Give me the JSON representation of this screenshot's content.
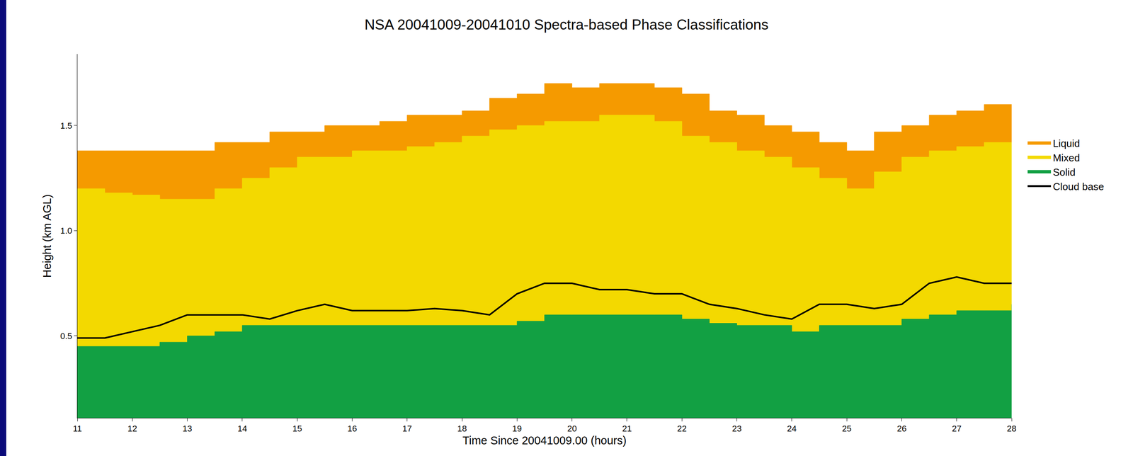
{
  "chart_data": {
    "type": "area",
    "title": "NSA 20041009-20041010 Spectra-based Phase Classifications",
    "x_label": "Time Since 20041009.00 (hours)",
    "y_label": "Height (km AGL)",
    "x": [
      11,
      11.5,
      12,
      12.5,
      13,
      13.5,
      14,
      14.5,
      15,
      15.5,
      16,
      16.5,
      17,
      17.5,
      18,
      18.5,
      19,
      19.5,
      20,
      20.5,
      21,
      21.5,
      22,
      22.5,
      23,
      23.5,
      24,
      24.5,
      25,
      25.5,
      26,
      26.5,
      27,
      27.5,
      28
    ],
    "series": [
      {
        "name": "Liquid",
        "color": "#f59a00",
        "values": [
          1.38,
          1.38,
          1.38,
          1.38,
          1.38,
          1.42,
          1.42,
          1.47,
          1.47,
          1.5,
          1.5,
          1.52,
          1.55,
          1.55,
          1.57,
          1.63,
          1.65,
          1.7,
          1.68,
          1.7,
          1.7,
          1.68,
          1.65,
          1.57,
          1.55,
          1.5,
          1.47,
          1.42,
          1.38,
          1.47,
          1.5,
          1.55,
          1.57,
          1.6,
          1.57
        ]
      },
      {
        "name": "Mixed",
        "color": "#f3d900",
        "values": [
          1.2,
          1.18,
          1.17,
          1.15,
          1.15,
          1.2,
          1.25,
          1.3,
          1.35,
          1.35,
          1.38,
          1.38,
          1.4,
          1.42,
          1.45,
          1.48,
          1.5,
          1.52,
          1.52,
          1.55,
          1.55,
          1.52,
          1.45,
          1.42,
          1.38,
          1.35,
          1.3,
          1.25,
          1.2,
          1.28,
          1.35,
          1.38,
          1.4,
          1.42,
          1.4
        ]
      },
      {
        "name": "Solid",
        "color": "#12a043",
        "values": [
          0.45,
          0.45,
          0.45,
          0.47,
          0.5,
          0.52,
          0.55,
          0.55,
          0.55,
          0.55,
          0.55,
          0.55,
          0.55,
          0.55,
          0.55,
          0.55,
          0.57,
          0.6,
          0.6,
          0.6,
          0.6,
          0.6,
          0.58,
          0.56,
          0.55,
          0.55,
          0.52,
          0.55,
          0.55,
          0.55,
          0.58,
          0.6,
          0.62,
          0.62,
          0.65
        ]
      },
      {
        "name": "Cloud base",
        "color": "#000000",
        "type": "line",
        "values": [
          0.49,
          0.49,
          0.52,
          0.55,
          0.6,
          0.6,
          0.6,
          0.58,
          0.62,
          0.65,
          0.62,
          0.62,
          0.62,
          0.63,
          0.62,
          0.6,
          0.7,
          0.75,
          0.75,
          0.72,
          0.72,
          0.7,
          0.7,
          0.65,
          0.63,
          0.6,
          0.58,
          0.65,
          0.65,
          0.63,
          0.65,
          0.75,
          0.78,
          0.75,
          0.75
        ]
      }
    ],
    "xlim": [
      11,
      28
    ],
    "xticks": [
      11,
      12,
      13,
      14,
      15,
      16,
      17,
      18,
      19,
      20,
      21,
      22,
      23,
      24,
      25,
      26,
      27,
      28
    ],
    "ylim": [
      0.11,
      1.84
    ],
    "yticks": [
      0.5,
      {
        "value": 1,
        "label": "1.0"
      },
      1.5
    ],
    "grid": false,
    "legend": "right"
  }
}
